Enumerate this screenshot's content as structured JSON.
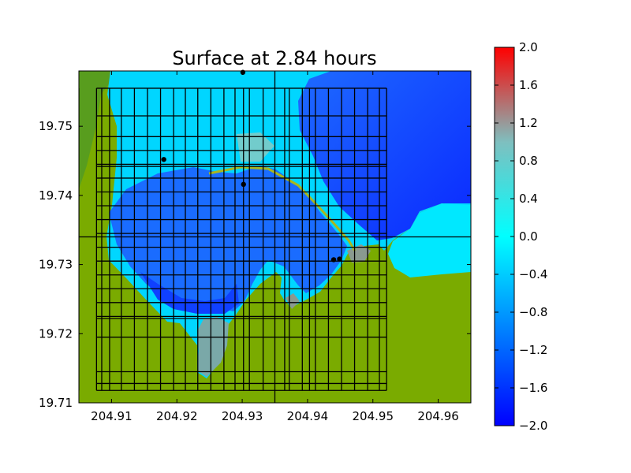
{
  "chart_data": {
    "type": "heatmap",
    "title": "Surface at 2.84 hours",
    "xlim": [
      204.905,
      204.965
    ],
    "ylim": [
      19.71,
      19.758
    ],
    "x_ticks": [
      {
        "value": 204.91,
        "label": "204.91"
      },
      {
        "value": 204.92,
        "label": "204.92"
      },
      {
        "value": 204.93,
        "label": "204.93"
      },
      {
        "value": 204.94,
        "label": "204.94"
      },
      {
        "value": 204.95,
        "label": "204.95"
      },
      {
        "value": 204.96,
        "label": "204.96"
      }
    ],
    "y_ticks": [
      {
        "value": 19.71,
        "label": "19.71"
      },
      {
        "value": 19.72,
        "label": "19.72"
      },
      {
        "value": 19.73,
        "label": "19.73"
      },
      {
        "value": 19.74,
        "label": "19.74"
      },
      {
        "value": 19.75,
        "label": "19.75"
      }
    ],
    "colorbar": {
      "range": [
        -2.0,
        2.0
      ],
      "ticks": [
        {
          "value": 2.0,
          "label": "2.0"
        },
        {
          "value": 1.6,
          "label": "1.6"
        },
        {
          "value": 1.2,
          "label": "1.2"
        },
        {
          "value": 0.8,
          "label": "0.8"
        },
        {
          "value": 0.4,
          "label": "0.4"
        },
        {
          "value": 0.0,
          "label": "0.0"
        },
        {
          "value": -0.4,
          "label": "−0.4"
        },
        {
          "value": -0.8,
          "label": "−0.8"
        },
        {
          "value": -1.2,
          "label": "−1.2"
        },
        {
          "value": -1.6,
          "label": "−1.6"
        },
        {
          "value": -2.0,
          "label": "−2.0"
        }
      ],
      "colors": [
        "#0000ff",
        "#00ffff",
        "#ff0000"
      ]
    },
    "land_color": "#7aab00",
    "gauges": [
      {
        "x": 204.9301,
        "y": 19.7578
      },
      {
        "x": 204.918,
        "y": 19.7452
      },
      {
        "x": 204.9302,
        "y": 19.7416
      },
      {
        "x": 204.944,
        "y": 19.7307
      },
      {
        "x": 204.9449,
        "y": 19.7308
      }
    ],
    "grid_v": [
      204.905,
      204.9077,
      204.9085,
      204.9097,
      204.9115,
      204.9135,
      204.9155,
      204.9175,
      204.9195,
      204.9213,
      204.9232,
      204.9252,
      204.9272,
      204.9289,
      204.9302,
      204.9311,
      204.9332,
      204.935,
      204.9365,
      204.9372,
      204.9392,
      204.9403,
      204.9412,
      204.9432,
      204.9452,
      204.9472,
      204.9492,
      204.951,
      204.9521
    ],
    "grid_h": [
      19.7118,
      19.7128,
      19.7145,
      19.7195,
      19.7222,
      19.7225,
      19.7245,
      19.7265,
      19.7285,
      19.7305,
      19.7325,
      19.734,
      19.7345,
      19.7365,
      19.7385,
      19.7405,
      19.7425,
      19.7442,
      19.7445,
      19.7465,
      19.7485,
      19.7515,
      19.7555
    ]
  }
}
